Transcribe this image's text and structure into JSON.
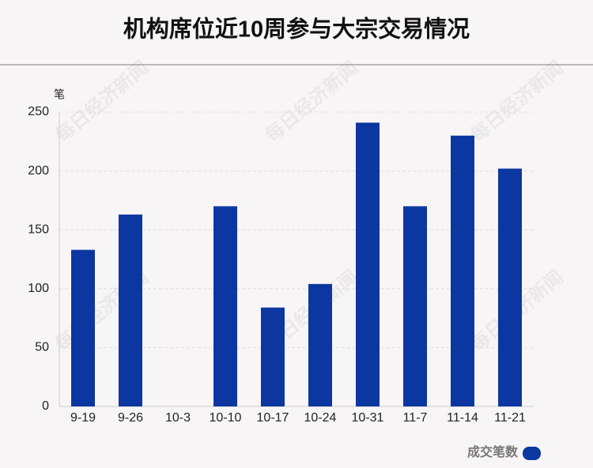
{
  "chart_data": {
    "type": "bar",
    "title": "机构席位近10周参与大宗交易情况",
    "y_unit": "笔",
    "watermark": "每日经济新闻",
    "categories": [
      "9-19",
      "9-26",
      "10-3",
      "10-10",
      "10-17",
      "10-24",
      "10-31",
      "11-7",
      "11-14",
      "11-21"
    ],
    "series": [
      {
        "name": "成交笔数",
        "color": "#0d37a0",
        "values": [
          133,
          163,
          0,
          170,
          84,
          104,
          241,
          170,
          230,
          202
        ]
      }
    ],
    "ylim": [
      0,
      250
    ],
    "yticks": [
      0,
      50,
      100,
      150,
      200,
      250
    ],
    "grid": true,
    "legend": "bottom-right"
  }
}
